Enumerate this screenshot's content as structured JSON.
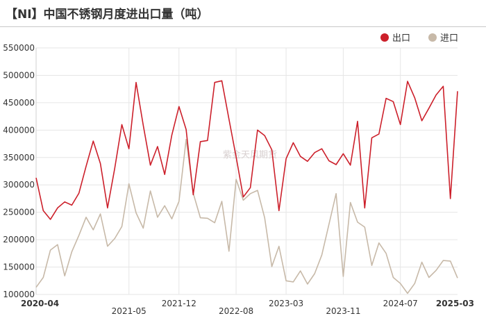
{
  "chart_data": {
    "type": "line",
    "title": "【NI】中国不锈钢月度进出口量（吨）",
    "watermark": "紫金天风期货",
    "ylim": [
      100000,
      550000
    ],
    "y_ticks": [
      "550000",
      "500000",
      "450000",
      "400000",
      "350000",
      "300000",
      "250000",
      "200000",
      "150000",
      "100000"
    ],
    "x_ticks": [
      {
        "label": "2020-04",
        "index": 0,
        "row": 1,
        "bold": true
      },
      {
        "label": "2021-05",
        "index": 13,
        "row": 2,
        "bold": false
      },
      {
        "label": "2021-12",
        "index": 20,
        "row": 1,
        "bold": false
      },
      {
        "label": "2022-08",
        "index": 28,
        "row": 2,
        "bold": false
      },
      {
        "label": "2023-03",
        "index": 35,
        "row": 1,
        "bold": false
      },
      {
        "label": "2023-11",
        "index": 43,
        "row": 2,
        "bold": false
      },
      {
        "label": "2024-07",
        "index": 51,
        "row": 1,
        "bold": false
      },
      {
        "label": "2025-03",
        "index": 59,
        "row": 1,
        "bold": true
      }
    ],
    "series": [
      {
        "name": "出口",
        "color": "#cc1f2a",
        "values": [
          313000,
          253000,
          237000,
          258000,
          269000,
          263000,
          285000,
          334000,
          380000,
          339000,
          258000,
          330000,
          410000,
          366000,
          487000,
          409000,
          336000,
          370000,
          319000,
          391000,
          443000,
          401000,
          282000,
          379000,
          381000,
          487000,
          490000,
          420000,
          351000,
          278000,
          295000,
          400000,
          390000,
          364000,
          253000,
          348000,
          377000,
          352000,
          343000,
          359000,
          366000,
          344000,
          337000,
          357000,
          336000,
          416000,
          258000,
          386000,
          393000,
          458000,
          452000,
          410000,
          489000,
          459000,
          417000,
          440000,
          464000,
          480000,
          275000,
          471000
        ]
      },
      {
        "name": "进口",
        "color": "#c7b9a8",
        "values": [
          113000,
          131000,
          181000,
          191000,
          134000,
          178000,
          208000,
          241000,
          218000,
          247000,
          188000,
          202000,
          224000,
          302000,
          249000,
          221000,
          289000,
          241000,
          262000,
          238000,
          270000,
          383000,
          285000,
          240000,
          239000,
          231000,
          270000,
          179000,
          310000,
          272000,
          284000,
          290000,
          240000,
          151000,
          188000,
          125000,
          123000,
          143000,
          119000,
          138000,
          172000,
          228000,
          284000,
          133000,
          268000,
          232000,
          223000,
          153000,
          194000,
          175000,
          131000,
          120000,
          102000,
          120000,
          159000,
          131000,
          144000,
          162000,
          161000,
          130000
        ]
      }
    ]
  }
}
